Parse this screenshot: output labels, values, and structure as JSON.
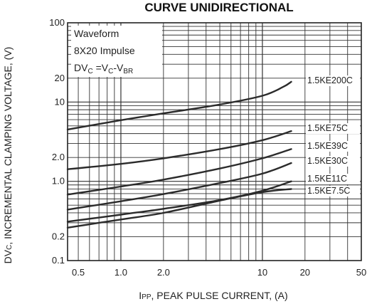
{
  "chart_data": {
    "type": "line",
    "title": "CURVE UNIDIRECTIONAL",
    "xlabel": "IPP, PEAK PULSE CURRENT, (A)",
    "ylabel": "DVC, INCREMENTAL CLAMPING VOLTAGE, (V)",
    "x_scale": "log",
    "y_scale": "log",
    "xlim": [
      0.42,
      50
    ],
    "ylim": [
      0.1,
      100
    ],
    "x_tick_labels": [
      "0.5",
      "1.0",
      "2.0",
      "10",
      "20",
      "50"
    ],
    "x_tick_values": [
      0.5,
      1.0,
      2.0,
      10,
      20,
      50
    ],
    "y_tick_labels": [
      "100",
      "20",
      "10",
      "2.0",
      "1.0",
      "0.2",
      "0.1"
    ],
    "y_tick_values": [
      100,
      20,
      10,
      2.0,
      1.0,
      0.2,
      0.1
    ],
    "grid": true,
    "annotation": {
      "line1": "Waveform",
      "line2": "8X20 Impulse",
      "line3_main": "DV",
      "line3_sub1": "C",
      "line3_mid": " =V",
      "line3_sub2": "C",
      "line3_mid2": "-V",
      "line3_sub3": "BR"
    },
    "series": [
      {
        "name": "1.5KE200C",
        "x": [
          0.42,
          1,
          2,
          5,
          10,
          14,
          16
        ],
        "y": [
          4.5,
          5.9,
          7.2,
          9.3,
          12.0,
          15.5,
          18.0
        ]
      },
      {
        "name": "1.5KE75C",
        "x": [
          0.42,
          1,
          2,
          5,
          10,
          16
        ],
        "y": [
          1.42,
          1.66,
          1.95,
          2.55,
          3.3,
          4.3
        ]
      },
      {
        "name": "1.5KE39C",
        "x": [
          0.42,
          1,
          2,
          5,
          10,
          16
        ],
        "y": [
          0.68,
          0.86,
          1.05,
          1.45,
          1.95,
          2.55
        ]
      },
      {
        "name": "1.5KE30C",
        "x": [
          0.42,
          1,
          2,
          5,
          10,
          16
        ],
        "y": [
          0.44,
          0.56,
          0.69,
          0.95,
          1.25,
          1.7
        ]
      },
      {
        "name": "1.5KE11C",
        "x": [
          0.42,
          1,
          2,
          5,
          10,
          16
        ],
        "y": [
          0.31,
          0.38,
          0.45,
          0.58,
          0.76,
          1.0
        ]
      },
      {
        "name": "1.5KE7.5C",
        "x": [
          0.42,
          1,
          2,
          5,
          10,
          16
        ],
        "y": [
          0.26,
          0.33,
          0.4,
          0.57,
          0.73,
          0.8
        ]
      }
    ],
    "colors": {
      "line": "#2b2b2b",
      "grid": "#333333",
      "text": "#222222"
    }
  }
}
